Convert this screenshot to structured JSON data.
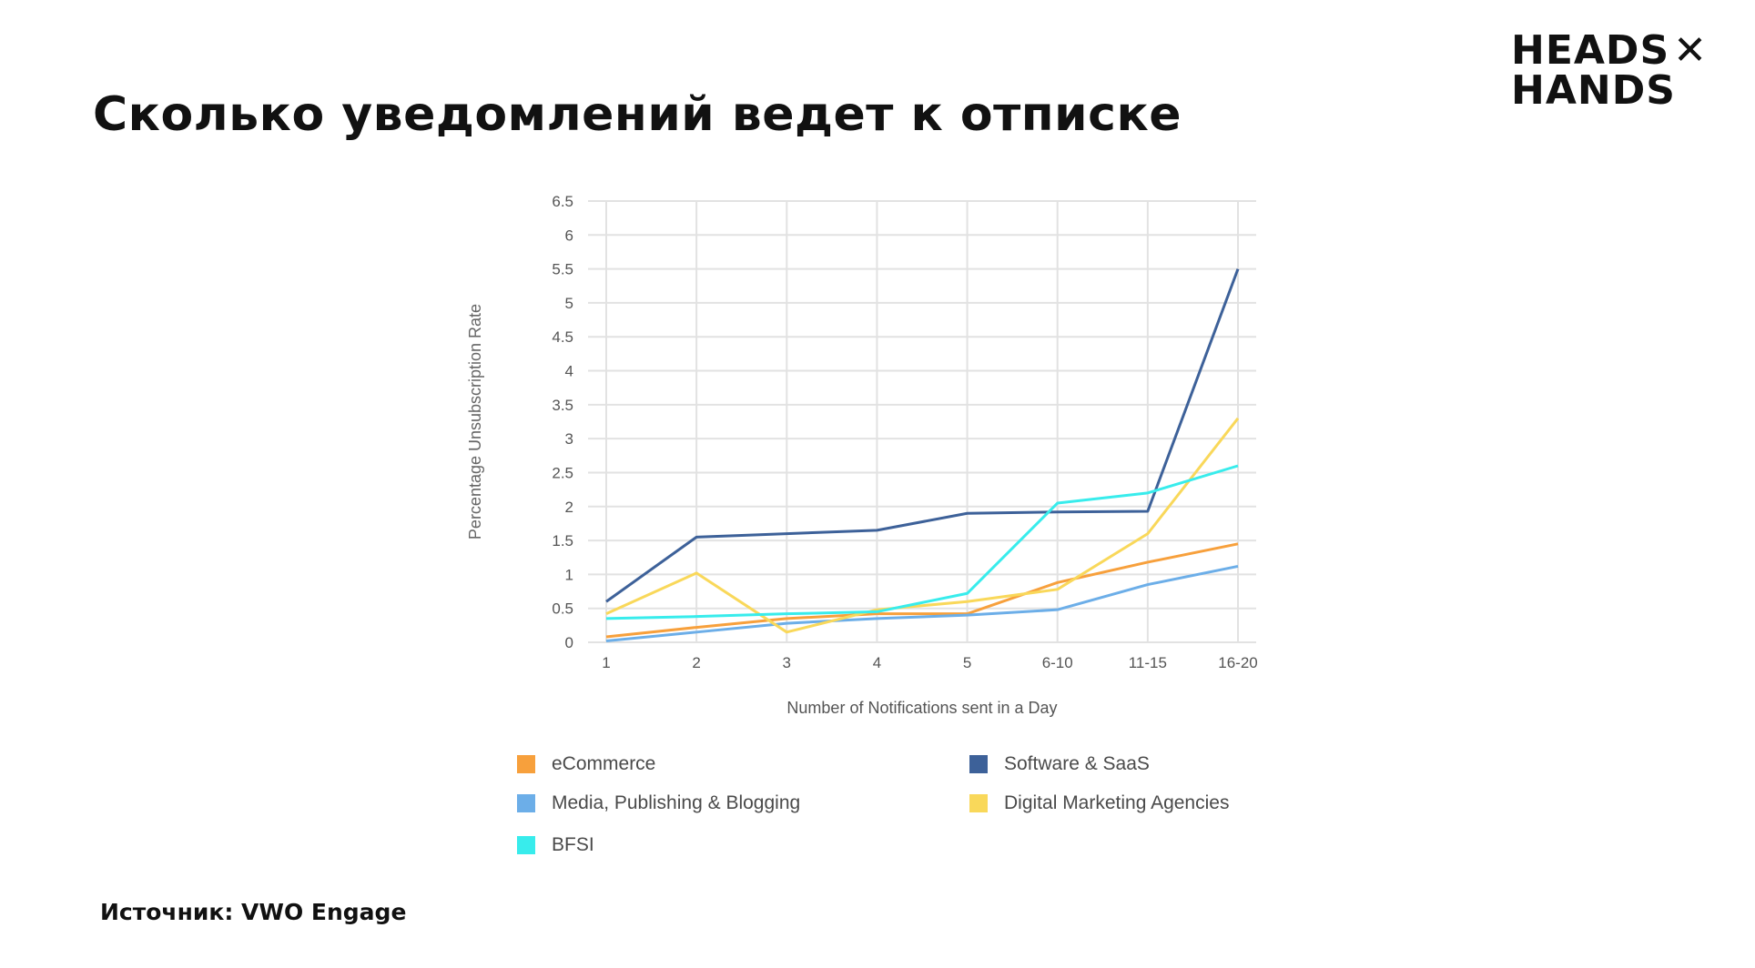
{
  "page": {
    "title": "Сколько уведомлений ведет к отписке",
    "source": "Источник: VWO Engage",
    "logo": {
      "line1": "HEADS",
      "line2": "HANDS",
      "mark": "✕"
    }
  },
  "chart_data": {
    "type": "line",
    "title": "",
    "xlabel": "Number of Notifications sent in a Day",
    "ylabel": "Percentage Unsubscription Rate",
    "categories": [
      "1",
      "2",
      "3",
      "4",
      "5",
      "6-10",
      "11-15",
      "16-20"
    ],
    "yticks": [
      "0",
      "0.5",
      "1",
      "1.5",
      "2",
      "2.5",
      "3",
      "3.5",
      "4",
      "4.5",
      "5",
      "5.5",
      "6",
      "6.5"
    ],
    "ylim": [
      0,
      6.5
    ],
    "grid": true,
    "legend_position": "bottom",
    "series": [
      {
        "name": "eCommerce",
        "color": "#F7A03C",
        "values": [
          0.08,
          0.22,
          0.35,
          0.42,
          0.42,
          0.88,
          1.18,
          1.45
        ]
      },
      {
        "name": "Software & SaaS",
        "color": "#3D6199",
        "values": [
          0.6,
          1.55,
          1.6,
          1.65,
          1.9,
          1.92,
          1.93,
          5.5
        ]
      },
      {
        "name": "Media, Publishing & Blogging",
        "color": "#6CAEE8",
        "values": [
          0.02,
          0.15,
          0.28,
          0.35,
          0.4,
          0.48,
          0.85,
          1.12
        ]
      },
      {
        "name": "Digital Marketing Agencies",
        "color": "#F9D85A",
        "values": [
          0.42,
          1.02,
          0.15,
          0.48,
          0.6,
          0.78,
          1.6,
          3.3
        ]
      },
      {
        "name": "BFSI",
        "color": "#38ECEC",
        "values": [
          0.35,
          0.38,
          0.42,
          0.45,
          0.72,
          2.05,
          2.2,
          2.6
        ]
      }
    ]
  }
}
